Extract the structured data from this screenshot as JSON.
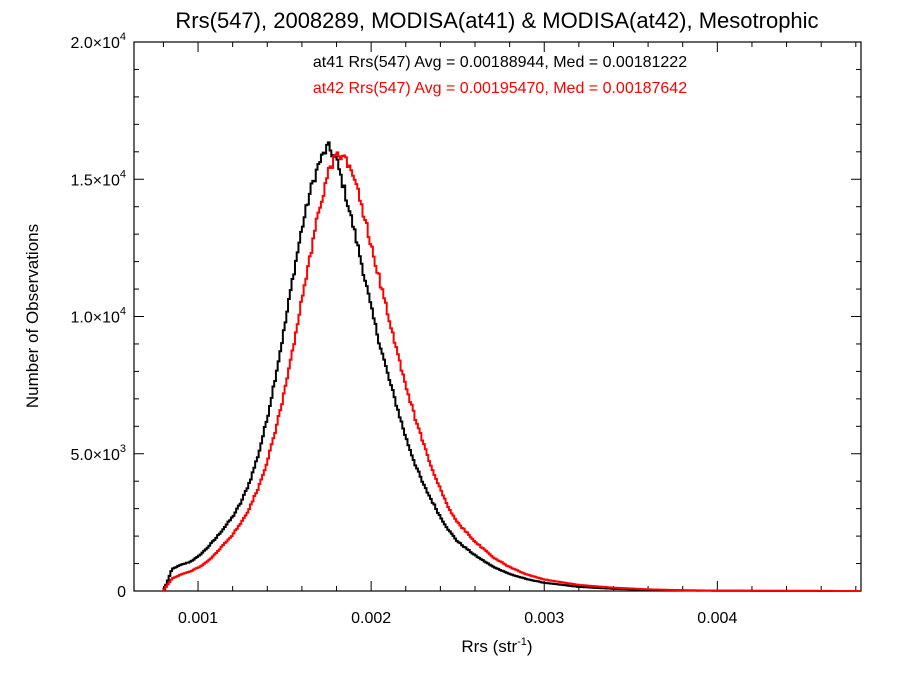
{
  "chart_data": {
    "type": "line",
    "title": "Rrs(547), 2008289, MODISA(at41) & MODISA(at42), Mesotrophic",
    "xlabel": {
      "base": "Rrs (str",
      "sup": "-1",
      "end": ")"
    },
    "ylabel": "Number of Observations",
    "xlim": [
      0.00063,
      0.00483
    ],
    "ylim": [
      0,
      20000
    ],
    "x_ticks": [
      {
        "value": 0.001,
        "label": "0.001"
      },
      {
        "value": 0.002,
        "label": "0.002"
      },
      {
        "value": 0.003,
        "label": "0.003"
      },
      {
        "value": 0.004,
        "label": "0.004"
      }
    ],
    "y_ticks": [
      {
        "value": 0,
        "mant": "0",
        "exp": ""
      },
      {
        "value": 5000,
        "mant": "5.0×10",
        "exp": "3"
      },
      {
        "value": 10000,
        "mant": "1.0×10",
        "exp": "4"
      },
      {
        "value": 15000,
        "mant": "1.5×10",
        "exp": "4"
      },
      {
        "value": 20000,
        "mant": "2.0×10",
        "exp": "4"
      }
    ],
    "annotations": [
      {
        "text": "at41 Rrs(547) Avg = 0.00188944, Med = 0.00181222",
        "color": "#000000"
      },
      {
        "text": "at42 Rrs(547) Avg = 0.00195470, Med = 0.00187642",
        "color": "#ff0000"
      }
    ],
    "series": [
      {
        "color": "#000000",
        "style": "step",
        "points": [
          [
            0.0008,
            0
          ],
          [
            0.00082,
            300
          ],
          [
            0.00085,
            800
          ],
          [
            0.0009,
            950
          ],
          [
            0.00095,
            1050
          ],
          [
            0.001,
            1250
          ],
          [
            0.00105,
            1550
          ],
          [
            0.0011,
            1900
          ],
          [
            0.00115,
            2300
          ],
          [
            0.0012,
            2700
          ],
          [
            0.00125,
            3250
          ],
          [
            0.0013,
            4000
          ],
          [
            0.00135,
            5000
          ],
          [
            0.0014,
            6300
          ],
          [
            0.00145,
            7900
          ],
          [
            0.0015,
            9600
          ],
          [
            0.00155,
            11500
          ],
          [
            0.0016,
            13200
          ],
          [
            0.00165,
            14600
          ],
          [
            0.0017,
            15600
          ],
          [
            0.00175,
            16200
          ],
          [
            0.0018,
            15700
          ],
          [
            0.00185,
            14500
          ],
          [
            0.0019,
            13200
          ],
          [
            0.00195,
            11800
          ],
          [
            0.002,
            10300
          ],
          [
            0.00205,
            9000
          ],
          [
            0.0021,
            7800
          ],
          [
            0.00215,
            6700
          ],
          [
            0.0022,
            5600
          ],
          [
            0.00225,
            4700
          ],
          [
            0.0023,
            3900
          ],
          [
            0.00235,
            3300
          ],
          [
            0.0024,
            2700
          ],
          [
            0.00245,
            2200
          ],
          [
            0.0025,
            1800
          ],
          [
            0.0026,
            1300
          ],
          [
            0.0027,
            900
          ],
          [
            0.0028,
            620
          ],
          [
            0.0029,
            430
          ],
          [
            0.003,
            300
          ],
          [
            0.0032,
            150
          ],
          [
            0.0034,
            80
          ],
          [
            0.0036,
            40
          ],
          [
            0.0038,
            20
          ],
          [
            0.004,
            10
          ],
          [
            0.0043,
            5
          ],
          [
            0.00483,
            0
          ]
        ]
      },
      {
        "color": "#ff0000",
        "style": "step",
        "points": [
          [
            0.0008,
            0
          ],
          [
            0.00082,
            200
          ],
          [
            0.00085,
            450
          ],
          [
            0.0009,
            600
          ],
          [
            0.00095,
            700
          ],
          [
            0.001,
            850
          ],
          [
            0.00105,
            1050
          ],
          [
            0.0011,
            1350
          ],
          [
            0.00115,
            1700
          ],
          [
            0.0012,
            2050
          ],
          [
            0.00125,
            2500
          ],
          [
            0.0013,
            3050
          ],
          [
            0.00135,
            3800
          ],
          [
            0.0014,
            4700
          ],
          [
            0.00145,
            5900
          ],
          [
            0.0015,
            7300
          ],
          [
            0.00155,
            8900
          ],
          [
            0.0016,
            10600
          ],
          [
            0.00165,
            12300
          ],
          [
            0.0017,
            13900
          ],
          [
            0.00175,
            15200
          ],
          [
            0.0018,
            15900
          ],
          [
            0.00185,
            15800
          ],
          [
            0.0019,
            15100
          ],
          [
            0.00195,
            13900
          ],
          [
            0.002,
            12600
          ],
          [
            0.00205,
            11300
          ],
          [
            0.0021,
            10000
          ],
          [
            0.00215,
            8700
          ],
          [
            0.0022,
            7500
          ],
          [
            0.00225,
            6400
          ],
          [
            0.0023,
            5400
          ],
          [
            0.00235,
            4500
          ],
          [
            0.0024,
            3700
          ],
          [
            0.00245,
            3000
          ],
          [
            0.0025,
            2500
          ],
          [
            0.0026,
            1800
          ],
          [
            0.0027,
            1250
          ],
          [
            0.0028,
            870
          ],
          [
            0.0029,
            600
          ],
          [
            0.003,
            420
          ],
          [
            0.0032,
            220
          ],
          [
            0.0034,
            120
          ],
          [
            0.0036,
            60
          ],
          [
            0.0038,
            30
          ],
          [
            0.004,
            15
          ],
          [
            0.0043,
            8
          ],
          [
            0.00483,
            0
          ]
        ]
      }
    ]
  }
}
